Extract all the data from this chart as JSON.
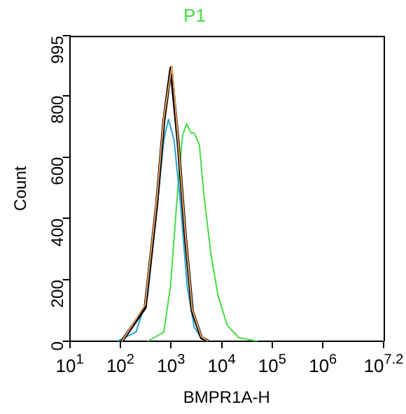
{
  "chart_data": {
    "type": "line",
    "title": "P1",
    "xlabel": "BMPR1A-H",
    "ylabel": "Count",
    "log": "x",
    "xlim": [
      10,
      15848932
    ],
    "ylim": [
      0,
      995
    ],
    "xticks": [
      {
        "value": 10,
        "label": "10$^{1}$"
      },
      {
        "value": 100,
        "label": "10$^{2}$"
      },
      {
        "value": 1000,
        "label": "10$^{3}$"
      },
      {
        "value": 10000,
        "label": "10$^{4}$"
      },
      {
        "value": 100000,
        "label": "10$^{5}$"
      },
      {
        "value": 1000000,
        "label": "10$^{6}$"
      },
      {
        "value": 15848932,
        "label": "10$^{7.2}$"
      }
    ],
    "yticks": [
      0,
      200,
      400,
      600,
      800,
      995
    ],
    "grid": false,
    "legend": false,
    "marker": "none",
    "line_style": "solid",
    "series": [
      {
        "color": "#e8a060",
        "x": [
          107,
          309,
          525,
          724,
          1047,
          1380,
          1905,
          2630,
          3981,
          5495
        ],
        "values": [
          0,
          119,
          462,
          731,
          897,
          656,
          359,
          104,
          15,
          0
        ]
      },
      {
        "color": "#000000",
        "x": [
          107,
          309,
          525,
          724,
          1000,
          1380,
          1905,
          2630,
          3981,
          5495
        ],
        "values": [
          0,
          110,
          450,
          720,
          890,
          650,
          350,
          100,
          12,
          0
        ]
      },
      {
        "color": "#29a3d6",
        "x": [
          87,
          204,
          347,
          525,
          724,
          891,
          1148,
          1514,
          2089,
          2884,
          4467
        ],
        "values": [
          0,
          30,
          149,
          432,
          656,
          723,
          656,
          462,
          179,
          45,
          0
        ]
      },
      {
        "color": "#44dd44",
        "x": [
          347,
          724,
          977,
          1380,
          1698,
          2042,
          2512,
          2884,
          3631,
          4467,
          6166,
          8511,
          12882,
          21878,
          51286
        ],
        "values": [
          0,
          30,
          179,
          507,
          671,
          708,
          678,
          678,
          641,
          477,
          283,
          149,
          52,
          12,
          0
        ]
      }
    ]
  }
}
